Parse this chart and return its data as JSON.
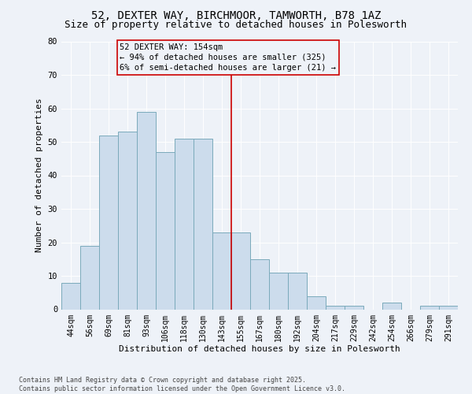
{
  "title": "52, DEXTER WAY, BIRCHMOOR, TAMWORTH, B78 1AZ",
  "subtitle": "Size of property relative to detached houses in Polesworth",
  "xlabel": "Distribution of detached houses by size in Polesworth",
  "ylabel": "Number of detached properties",
  "categories": [
    "44sqm",
    "56sqm",
    "69sqm",
    "81sqm",
    "93sqm",
    "106sqm",
    "118sqm",
    "130sqm",
    "143sqm",
    "155sqm",
    "167sqm",
    "180sqm",
    "192sqm",
    "204sqm",
    "217sqm",
    "229sqm",
    "242sqm",
    "254sqm",
    "266sqm",
    "279sqm",
    "291sqm"
  ],
  "values": [
    8,
    19,
    52,
    53,
    59,
    47,
    51,
    51,
    23,
    23,
    15,
    11,
    11,
    4,
    1,
    1,
    0,
    2,
    0,
    1,
    1
  ],
  "bar_color": "#ccdcec",
  "bar_edge_color": "#7aaabb",
  "vline_color": "#cc0000",
  "vline_index": 9,
  "annotation_text": "52 DEXTER WAY: 154sqm\n← 94% of detached houses are smaller (325)\n6% of semi-detached houses are larger (21) →",
  "annotation_box_edgecolor": "#cc0000",
  "ylim": [
    0,
    80
  ],
  "yticks": [
    0,
    10,
    20,
    30,
    40,
    50,
    60,
    70,
    80
  ],
  "background_color": "#eef2f8",
  "grid_color": "#ffffff",
  "footer_text": "Contains HM Land Registry data © Crown copyright and database right 2025.\nContains public sector information licensed under the Open Government Licence v3.0.",
  "title_fontsize": 10,
  "subtitle_fontsize": 9,
  "axis_label_fontsize": 8,
  "tick_fontsize": 7,
  "annotation_fontsize": 7.5,
  "footer_fontsize": 6
}
